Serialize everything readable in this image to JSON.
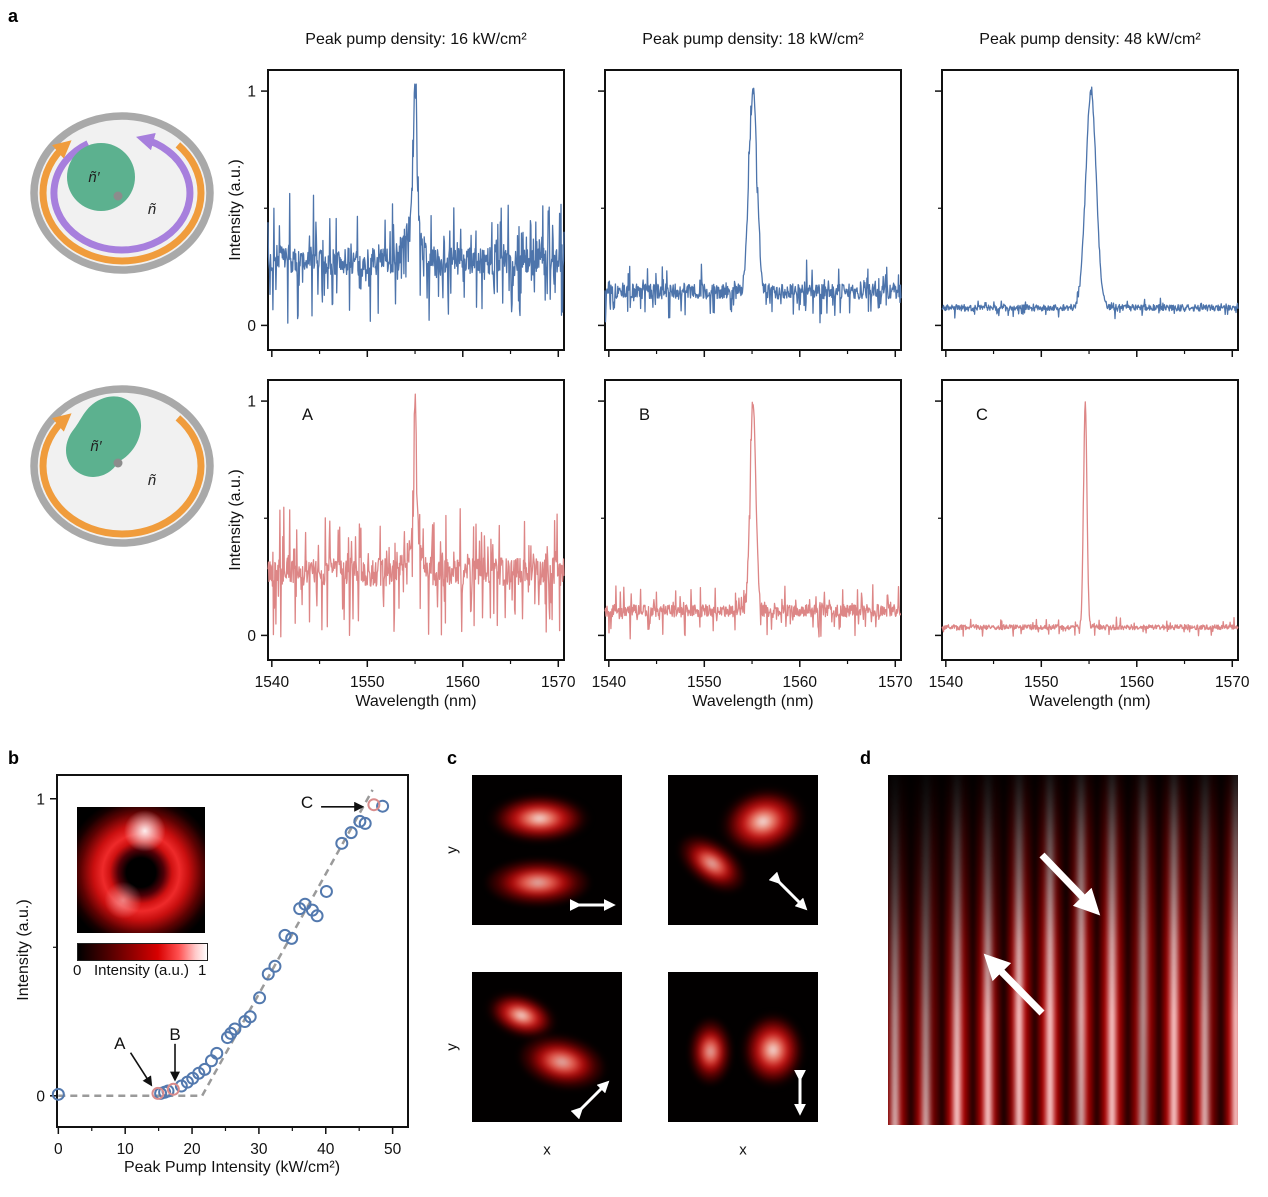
{
  "figure": {
    "panel_labels": {
      "a": "a",
      "b": "b",
      "c": "c",
      "d": "d"
    }
  },
  "colors": {
    "trace_blue": "#4d74ab",
    "trace_pink": "#dd8686",
    "scatter_blue": "#5379ae",
    "scatter_red": "#d98c8c",
    "dashed_grey": "#9a9a9a",
    "arc_orange": "#f09c3c",
    "arc_purple": "#a77fdd",
    "gain_green": "#5cb18f",
    "ring_grey": "#a9a9a9",
    "cavity_fill": "#f1f1f1",
    "dot_grey": "#8c8c8c",
    "axis_black": "#111111"
  },
  "panel_a": {
    "diagram_top": {
      "inner_label": "ñ′",
      "outer_label": "ñ",
      "arrows": [
        "clockwise-orange-pump",
        "counterclockwise-purple-mode"
      ]
    },
    "diagram_bottom": {
      "inner_label": "ñ′",
      "outer_label": "ñ",
      "arrows": [
        "clockwise-orange-pump"
      ]
    }
  },
  "panel_b": {
    "colorbar": {
      "min_label": "0",
      "title": "Intensity (a.u.)",
      "max_label": "1"
    }
  },
  "panel_c": {
    "xlabel": "x",
    "ylabel": "y",
    "polarization_arrows": [
      "horizontal",
      "diagonal-down-right",
      "diagonal-up-right",
      "vertical"
    ]
  },
  "panel_d": {
    "arrow_directions": [
      "down-right",
      "up-left"
    ]
  },
  "chart_data": [
    {
      "id": "spec-top-16",
      "type": "line",
      "title": "Peak pump density: 16 kW/cm²",
      "corner": "",
      "color": "#4d74ab",
      "xlim": [
        1539.6,
        1570.6
      ],
      "ylim": [
        -0.105,
        1.09
      ],
      "x_ticks": [
        1540,
        1550,
        1560,
        1570
      ],
      "x_minor": [
        1545,
        1555,
        1565
      ],
      "y_ticks": [
        0,
        1
      ],
      "y_minor": [
        0.5
      ],
      "x_tick_labels": false,
      "y_tick_labels": true,
      "xlabel": "",
      "ylabel": "Intensity (a.u.)",
      "baseline": 0.27,
      "noise": 0.06,
      "spike_p": 0.3,
      "spike_a": 0.12,
      "peaks": [
        {
          "center": 1555.0,
          "sigma": 0.2,
          "amp": 0.62
        },
        {
          "center": 1554.7,
          "sigma": 0.9,
          "amp": 0.13
        }
      ],
      "seed": 7
    },
    {
      "id": "spec-top-18",
      "type": "line",
      "title": "Peak pump density: 18 kW/cm²",
      "corner": "",
      "color": "#4d74ab",
      "xlim": [
        1539.6,
        1570.6
      ],
      "ylim": [
        -0.105,
        1.09
      ],
      "x_ticks": [
        1540,
        1550,
        1560,
        1570
      ],
      "x_minor": [
        1545,
        1555,
        1565
      ],
      "y_ticks": [
        0,
        1
      ],
      "y_minor": [
        0.5
      ],
      "x_tick_labels": false,
      "y_tick_labels": false,
      "xlabel": "",
      "ylabel": "Intensity (a.u.)",
      "baseline": 0.145,
      "noise": 0.032,
      "spike_p": 0.22,
      "spike_a": 0.055,
      "peaks": [
        {
          "center": 1555.1,
          "sigma": 0.42,
          "amp": 0.855
        }
      ],
      "seed": 13
    },
    {
      "id": "spec-top-48",
      "type": "line",
      "title": "Peak pump density: 48 kW/cm²",
      "corner": "",
      "color": "#4d74ab",
      "xlim": [
        1539.6,
        1570.6
      ],
      "ylim": [
        -0.105,
        1.09
      ],
      "x_ticks": [
        1540,
        1550,
        1560,
        1570
      ],
      "x_minor": [
        1545,
        1555,
        1565
      ],
      "y_ticks": [
        0,
        1
      ],
      "y_minor": [
        0.5
      ],
      "x_tick_labels": false,
      "y_tick_labels": false,
      "xlabel": "",
      "ylabel": "Intensity (a.u.)",
      "baseline": 0.075,
      "noise": 0.014,
      "spike_p": 0.15,
      "spike_a": 0.02,
      "peaks": [
        {
          "center": 1555.2,
          "sigma": 0.55,
          "amp": 0.925
        }
      ],
      "seed": 21
    },
    {
      "id": "spec-bot-16",
      "type": "line",
      "title": "",
      "corner": "A",
      "color": "#dd8686",
      "xlim": [
        1539.6,
        1570.6
      ],
      "ylim": [
        -0.105,
        1.09
      ],
      "x_ticks": [
        1540,
        1550,
        1560,
        1570
      ],
      "x_minor": [
        1545,
        1555,
        1565
      ],
      "y_ticks": [
        0,
        1
      ],
      "y_minor": [
        0.5
      ],
      "x_tick_labels": true,
      "y_tick_labels": true,
      "xlabel": "Wavelength (nm)",
      "ylabel": "Intensity (a.u.)",
      "baseline": 0.27,
      "noise": 0.06,
      "spike_p": 0.3,
      "spike_a": 0.12,
      "peaks": [
        {
          "center": 1555.0,
          "sigma": 0.16,
          "amp": 0.66
        },
        {
          "center": 1554.8,
          "sigma": 0.7,
          "amp": 0.1
        }
      ],
      "seed": 42
    },
    {
      "id": "spec-bot-18",
      "type": "line",
      "title": "",
      "corner": "B",
      "color": "#dd8686",
      "xlim": [
        1539.6,
        1570.6
      ],
      "ylim": [
        -0.105,
        1.09
      ],
      "x_ticks": [
        1540,
        1550,
        1560,
        1570
      ],
      "x_minor": [
        1545,
        1555,
        1565
      ],
      "y_ticks": [
        0,
        1
      ],
      "y_minor": [
        0.5
      ],
      "x_tick_labels": true,
      "y_tick_labels": false,
      "xlabel": "Wavelength (nm)",
      "ylabel": "Intensity (a.u.)",
      "baseline": 0.105,
      "noise": 0.026,
      "spike_p": 0.2,
      "spike_a": 0.05,
      "peaks": [
        {
          "center": 1555.1,
          "sigma": 0.3,
          "amp": 0.9
        }
      ],
      "seed": 55
    },
    {
      "id": "spec-bot-48",
      "type": "line",
      "title": "",
      "corner": "C",
      "color": "#dd8686",
      "xlim": [
        1539.6,
        1570.6
      ],
      "ylim": [
        -0.105,
        1.09
      ],
      "x_ticks": [
        1540,
        1550,
        1560,
        1570
      ],
      "x_minor": [
        1545,
        1555,
        1565
      ],
      "y_ticks": [
        0,
        1
      ],
      "y_minor": [
        0.5
      ],
      "x_tick_labels": true,
      "y_tick_labels": false,
      "xlabel": "Wavelength (nm)",
      "ylabel": "Intensity (a.u.)",
      "baseline": 0.035,
      "noise": 0.011,
      "spike_p": 0.12,
      "spike_a": 0.02,
      "peaks": [
        {
          "center": 1554.6,
          "sigma": 0.18,
          "amp": 0.96
        }
      ],
      "seed": 99
    },
    {
      "id": "threshold",
      "type": "scatter",
      "xlabel": "Peak Pump Intensity (kW/cm²)",
      "ylabel": "Intensity (a.u.)",
      "xlim": [
        -0.2,
        52.3
      ],
      "ylim": [
        -0.105,
        1.08
      ],
      "x_ticks": [
        0,
        10,
        20,
        30,
        40,
        50
      ],
      "x_minor": [
        5,
        15,
        25,
        35,
        45
      ],
      "y_ticks": [
        0,
        1
      ],
      "y_minor": [
        0.5
      ],
      "x_tick_labels": true,
      "y_tick_labels": true,
      "point_color": "#5379ae",
      "highlight_color": "#d98c8c",
      "dash_color": "#9a9a9a",
      "points": [
        [
          0,
          0.005
        ],
        [
          15.3,
          0.008
        ],
        [
          15.9,
          0.012
        ],
        [
          16.4,
          0.016
        ],
        [
          18.4,
          0.033
        ],
        [
          19.3,
          0.046
        ],
        [
          20.1,
          0.059
        ],
        [
          21.0,
          0.076
        ],
        [
          21.9,
          0.089
        ],
        [
          22.9,
          0.118
        ],
        [
          23.7,
          0.143
        ],
        [
          25.3,
          0.196
        ],
        [
          25.8,
          0.21
        ],
        [
          26.4,
          0.225
        ],
        [
          27.9,
          0.25
        ],
        [
          28.7,
          0.266
        ],
        [
          30.1,
          0.33
        ],
        [
          31.4,
          0.41
        ],
        [
          32.4,
          0.436
        ],
        [
          33.9,
          0.54
        ],
        [
          34.9,
          0.53
        ],
        [
          36.1,
          0.63
        ],
        [
          36.9,
          0.645
        ],
        [
          38.0,
          0.625
        ],
        [
          38.7,
          0.606
        ],
        [
          40.1,
          0.688
        ],
        [
          42.4,
          0.85
        ],
        [
          43.8,
          0.886
        ],
        [
          45.1,
          0.924
        ],
        [
          45.9,
          0.917
        ],
        [
          48.5,
          0.975
        ]
      ],
      "highlight_points": [
        {
          "label": "A",
          "x": 14.9,
          "y": 0.008
        },
        {
          "label": "B",
          "x": 17.2,
          "y": 0.022
        },
        {
          "label": "C",
          "x": 47.2,
          "y": 0.98
        }
      ],
      "threshold_line": [
        [
          0,
          0
        ],
        [
          21.5,
          0
        ],
        [
          47.0,
          1.03
        ]
      ],
      "annotations": [
        {
          "label": "A",
          "tx": 9.2,
          "ty": 0.175,
          "ax": 10.8,
          "ay": 0.145,
          "bx": 13.8,
          "by": 0.04
        },
        {
          "label": "B",
          "tx": 17.45,
          "ty": 0.205,
          "ax": 17.45,
          "ay": 0.175,
          "bx": 17.45,
          "by": 0.058
        },
        {
          "label": "C",
          "tx": 37.2,
          "ty": 0.985,
          "ax": 39.3,
          "ay": 0.973,
          "bx": 45.3,
          "by": 0.973
        }
      ]
    }
  ]
}
